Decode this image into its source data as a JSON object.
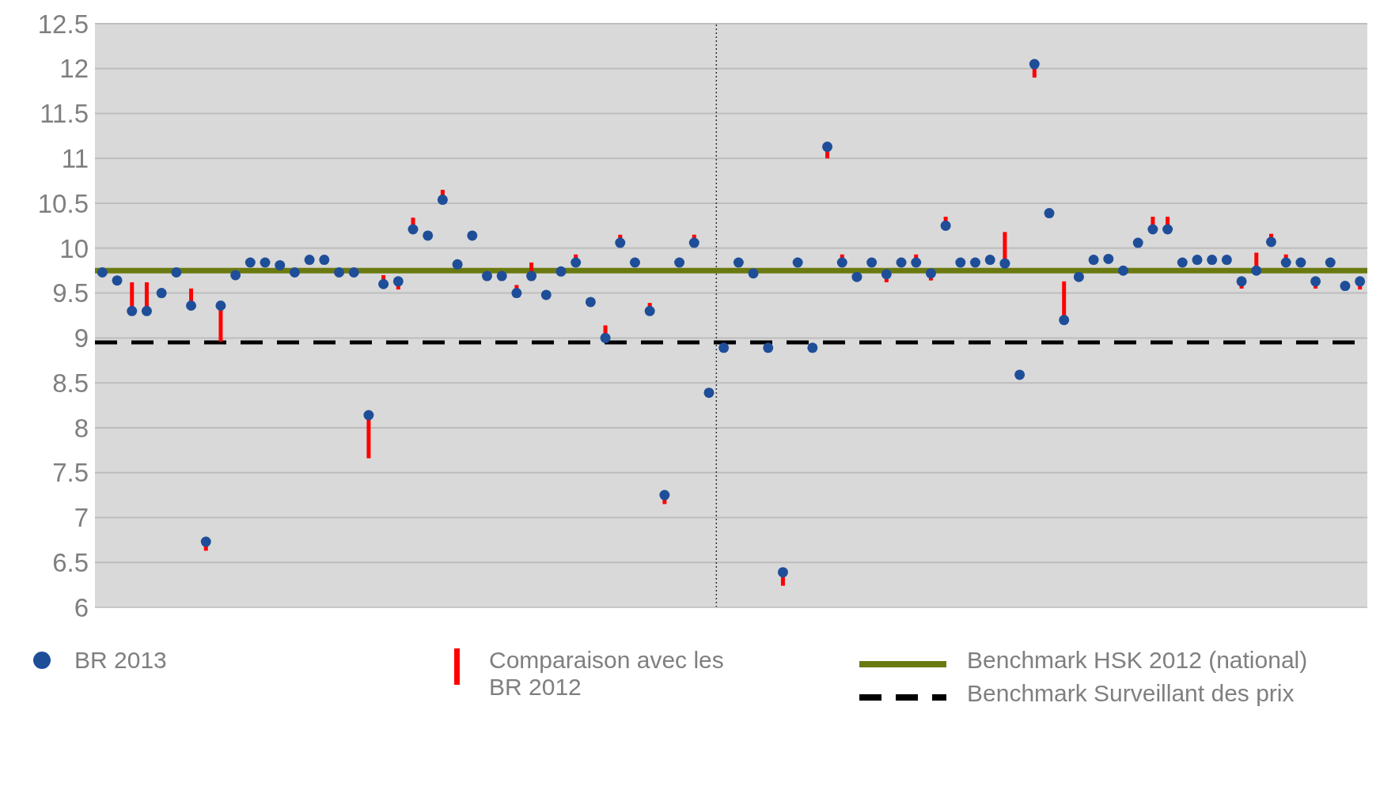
{
  "chart_data": {
    "type": "scatter",
    "categories": [
      null,
      null,
      null,
      null,
      null,
      null,
      null,
      null,
      null,
      null,
      null,
      null,
      null,
      null,
      null,
      null,
      null,
      null,
      null,
      null,
      null,
      null,
      null,
      null,
      null,
      null,
      null,
      null,
      null,
      null,
      null,
      null,
      null,
      null,
      null,
      null,
      null,
      null,
      null,
      null,
      null,
      null,
      null,
      null,
      null,
      null,
      null,
      null,
      null,
      null,
      null,
      null,
      null,
      null,
      null,
      null,
      null,
      null,
      null,
      null,
      null,
      null,
      null,
      null,
      null,
      null,
      null,
      null,
      null,
      null,
      null,
      null,
      null,
      null,
      null,
      null,
      null,
      null,
      null,
      null,
      null,
      null,
      null,
      null,
      null,
      null
    ],
    "ylim": [
      6,
      12.5
    ],
    "yticks": [
      6,
      6.5,
      7,
      7.5,
      8,
      8.5,
      9,
      9.5,
      10,
      10.5,
      11,
      11.5,
      12,
      12.5
    ],
    "grid": "y",
    "tick_labels": "y",
    "legend": "bottom",
    "marker": "circle",
    "annotations": [
      "Comparaison avec les BR 2012"
    ],
    "series": [
      {
        "name": "BR 2013",
        "color": "#1f4e99",
        "values": [
          9.73,
          9.64,
          9.3,
          9.3,
          9.5,
          9.73,
          9.36,
          6.73,
          9.36,
          9.7,
          9.84,
          9.84,
          9.81,
          9.73,
          9.87,
          9.87,
          9.73,
          9.73,
          8.14,
          9.6,
          9.63,
          10.21,
          10.14,
          10.54,
          9.82,
          10.14,
          9.69,
          9.69,
          9.5,
          9.69,
          9.48,
          9.74,
          9.84,
          9.4,
          9.0,
          10.06,
          9.84,
          9.3,
          7.25,
          9.84,
          10.06,
          8.39,
          8.89,
          9.84,
          9.72,
          8.89,
          6.39,
          9.84,
          8.89,
          11.13,
          9.84,
          9.68,
          9.84,
          9.71,
          9.84,
          9.84,
          9.72,
          10.25,
          9.84,
          9.84,
          9.87,
          9.83,
          8.59,
          12.05,
          10.39,
          9.2,
          9.68,
          9.87,
          9.88,
          9.75,
          10.06,
          10.21,
          10.21,
          9.84,
          9.87,
          9.87,
          9.87,
          9.63,
          9.75,
          10.07,
          9.84,
          9.84,
          9.63,
          9.84,
          9.58,
          9.63
        ],
        "errors": [
          null,
          null,
          [
            9.3,
            9.62
          ],
          [
            9.3,
            9.62
          ],
          null,
          null,
          [
            9.36,
            9.55
          ],
          [
            6.63,
            6.73
          ],
          [
            8.96,
            9.36
          ],
          null,
          null,
          null,
          null,
          null,
          null,
          null,
          null,
          null,
          [
            7.66,
            8.14
          ],
          [
            9.6,
            9.7
          ],
          [
            9.54,
            9.63
          ],
          [
            10.21,
            10.34
          ],
          null,
          [
            10.54,
            10.65
          ],
          null,
          null,
          null,
          null,
          [
            9.5,
            9.59
          ],
          [
            9.69,
            9.84
          ],
          null,
          null,
          [
            9.84,
            9.93
          ],
          null,
          [
            9.0,
            9.14
          ],
          [
            10.06,
            10.15
          ],
          null,
          [
            9.3,
            9.39
          ],
          [
            7.15,
            7.25
          ],
          null,
          [
            10.06,
            10.15
          ],
          null,
          null,
          null,
          null,
          null,
          [
            6.24,
            6.39
          ],
          null,
          null,
          [
            11.0,
            11.13
          ],
          [
            9.84,
            9.93
          ],
          null,
          null,
          [
            9.62,
            9.71
          ],
          null,
          [
            9.84,
            9.93
          ],
          [
            9.64,
            9.72
          ],
          [
            10.25,
            10.35
          ],
          null,
          null,
          null,
          [
            9.83,
            10.18
          ],
          null,
          [
            11.9,
            12.05
          ],
          null,
          [
            9.2,
            9.63
          ],
          null,
          null,
          null,
          null,
          null,
          [
            10.21,
            10.35
          ],
          [
            10.21,
            10.35
          ],
          null,
          null,
          null,
          null,
          [
            9.55,
            9.63
          ],
          [
            9.75,
            9.95
          ],
          [
            10.07,
            10.16
          ],
          [
            9.84,
            9.93
          ],
          null,
          [
            9.55,
            9.63
          ],
          null,
          null,
          [
            9.54,
            9.63
          ]
        ]
      }
    ],
    "ref_lines": [
      {
        "axis": "y",
        "value": 9.75,
        "label": "Benchmark HSK 2012 (national)",
        "color": "#6b7a10",
        "line_style": "solid"
      },
      {
        "axis": "y",
        "value": 8.95,
        "label": "Benchmark Surveillant des prix",
        "color": "#000000",
        "line_style": "dashed"
      }
    ]
  }
}
